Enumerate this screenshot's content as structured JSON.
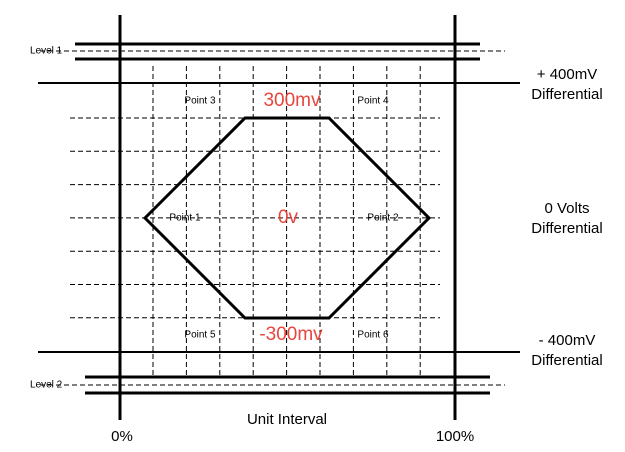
{
  "levels": [
    "Level 1",
    "Level 2"
  ],
  "points": [
    "Point 1",
    "Point 2",
    "Point 3",
    "Point 4",
    "Point 5",
    "Point 6"
  ],
  "voltages": [
    "300mv",
    "0v",
    "-300mv"
  ],
  "differential_labels": [
    {
      "lines": [
        "+ 400mV",
        "Differential"
      ]
    },
    {
      "lines": [
        "0 Volts",
        "Differential"
      ]
    },
    {
      "lines": [
        "- 400mV",
        "Differential"
      ]
    }
  ],
  "x_axis": {
    "label": "Unit Interval",
    "start": "0%",
    "end": "100%"
  }
}
